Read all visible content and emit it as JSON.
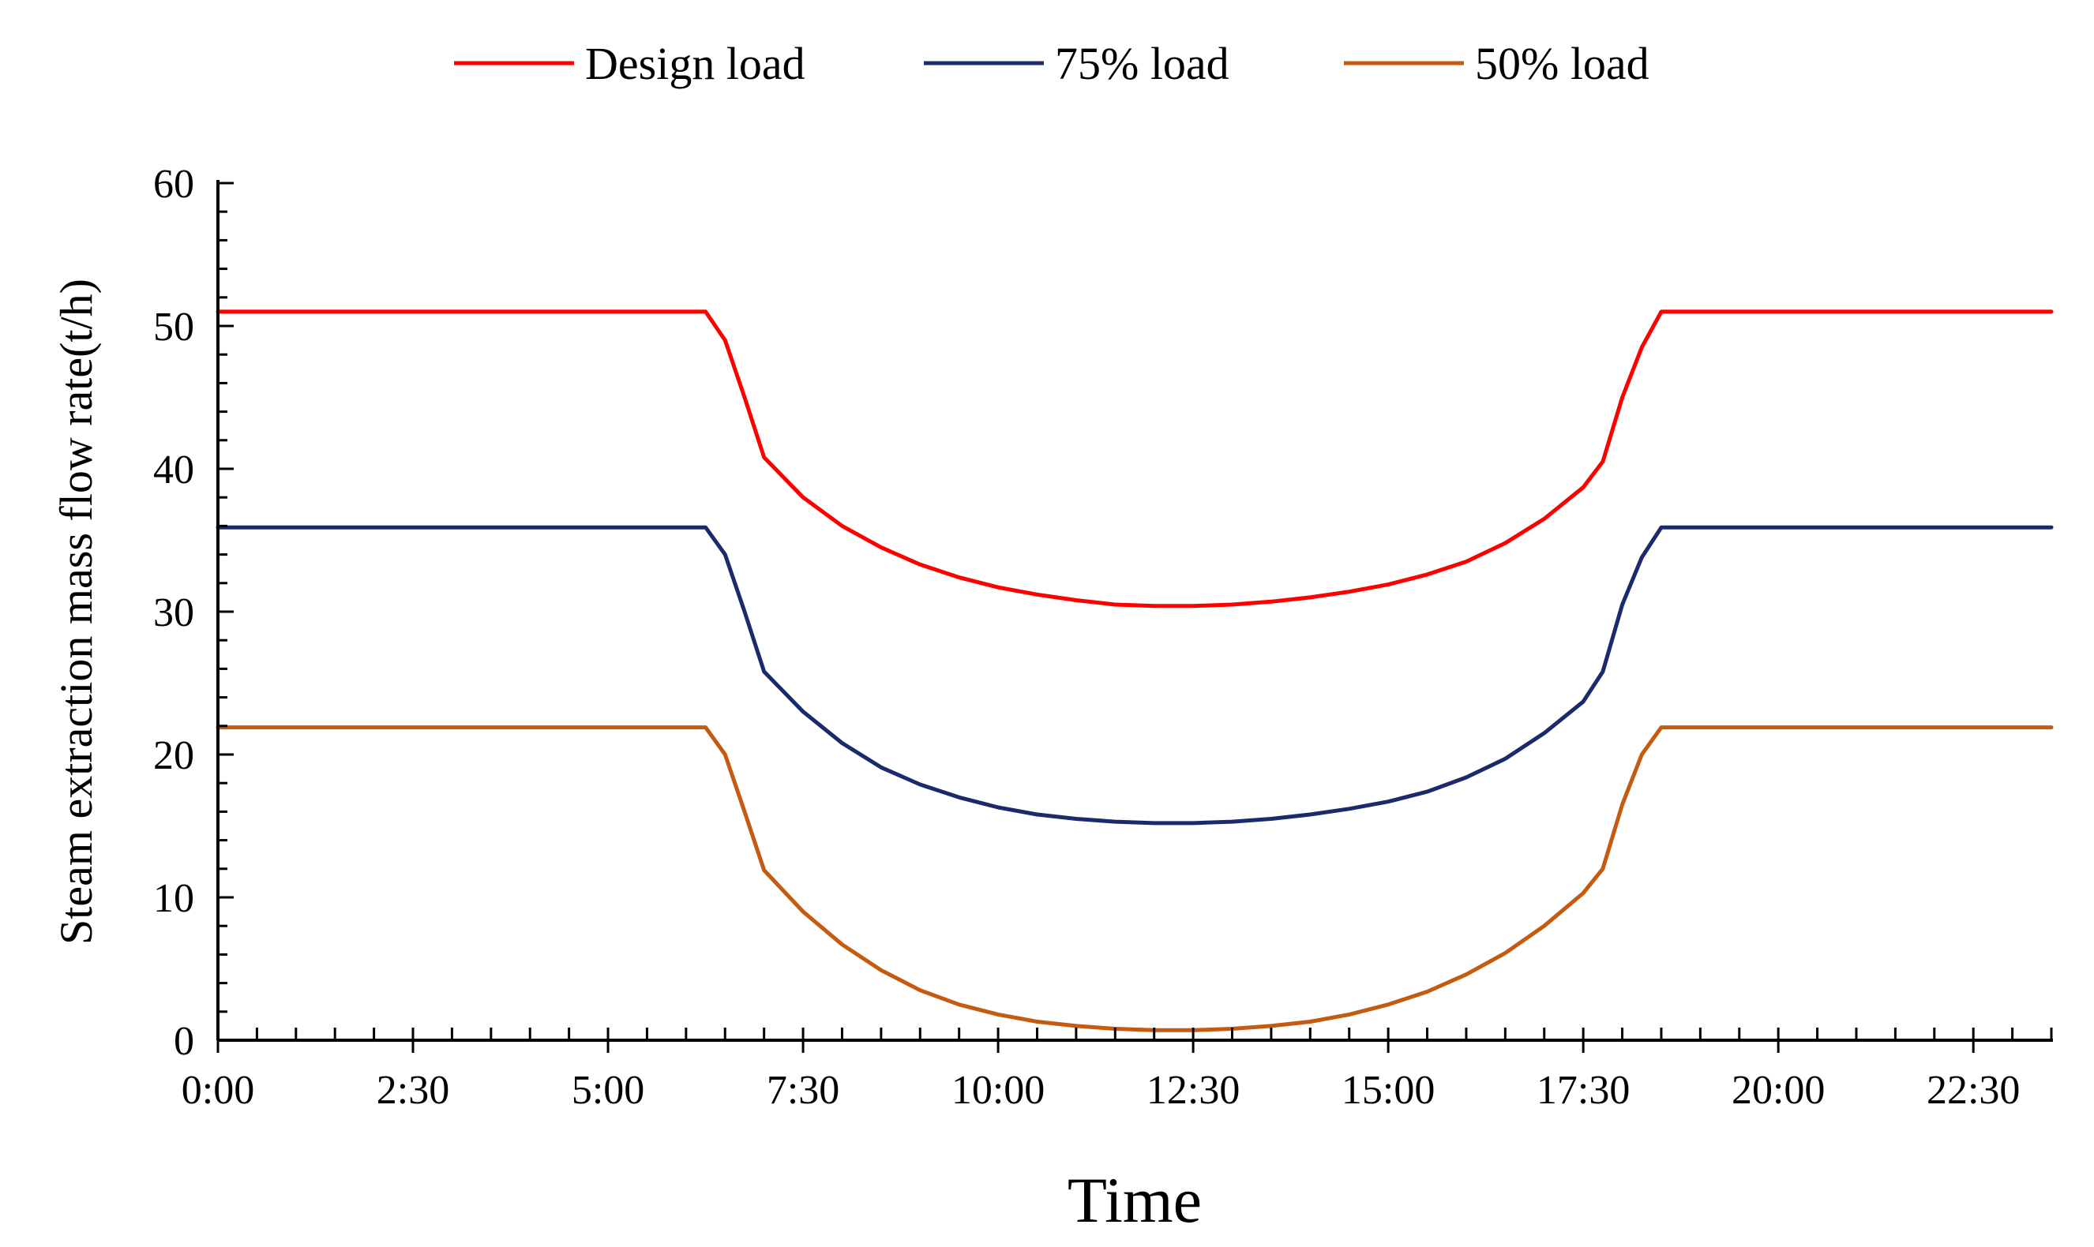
{
  "chart_data": {
    "type": "line",
    "title": "",
    "xlabel": "Time",
    "ylabel": "Steam extraction mass flow rate(t/h)",
    "ylim": [
      0,
      60
    ],
    "y_ticks": [
      0,
      10,
      20,
      30,
      40,
      50,
      60
    ],
    "x_unit": "hours",
    "xlim": [
      0,
      23.5
    ],
    "x_ticks": [
      {
        "value": 0,
        "label": "0:00"
      },
      {
        "value": 2.5,
        "label": "2:30"
      },
      {
        "value": 5,
        "label": "5:00"
      },
      {
        "value": 7.5,
        "label": "7:30"
      },
      {
        "value": 10,
        "label": "10:00"
      },
      {
        "value": 12.5,
        "label": "12:30"
      },
      {
        "value": 15,
        "label": "15:00"
      },
      {
        "value": 17.5,
        "label": "17:30"
      },
      {
        "value": 20,
        "label": "20:00"
      },
      {
        "value": 22.5,
        "label": "22:30"
      }
    ],
    "grid": false,
    "legend_position": "top",
    "series": [
      {
        "name": "Design load",
        "color": "#ff0000",
        "points": [
          [
            0,
            51.0
          ],
          [
            6.25,
            51.0
          ],
          [
            6.5,
            49.0
          ],
          [
            6.75,
            45.0
          ],
          [
            7.0,
            40.8
          ],
          [
            7.5,
            38.0
          ],
          [
            8.0,
            36.0
          ],
          [
            8.5,
            34.5
          ],
          [
            9.0,
            33.3
          ],
          [
            9.5,
            32.4
          ],
          [
            10.0,
            31.7
          ],
          [
            10.5,
            31.2
          ],
          [
            11.0,
            30.8
          ],
          [
            11.5,
            30.5
          ],
          [
            12.0,
            30.4
          ],
          [
            12.5,
            30.4
          ],
          [
            13.0,
            30.5
          ],
          [
            13.5,
            30.7
          ],
          [
            14.0,
            31.0
          ],
          [
            14.5,
            31.4
          ],
          [
            15.0,
            31.9
          ],
          [
            15.5,
            32.6
          ],
          [
            16.0,
            33.5
          ],
          [
            16.5,
            34.8
          ],
          [
            17.0,
            36.5
          ],
          [
            17.5,
            38.7
          ],
          [
            17.75,
            40.5
          ],
          [
            18.0,
            45.0
          ],
          [
            18.25,
            48.5
          ],
          [
            18.5,
            51.0
          ],
          [
            23.5,
            51.0
          ]
        ]
      },
      {
        "name": "75% load",
        "color": "#1c2a6b",
        "points": [
          [
            0,
            35.9
          ],
          [
            6.25,
            35.9
          ],
          [
            6.5,
            34.0
          ],
          [
            6.75,
            30.0
          ],
          [
            7.0,
            25.8
          ],
          [
            7.5,
            23.0
          ],
          [
            8.0,
            20.8
          ],
          [
            8.5,
            19.1
          ],
          [
            9.0,
            17.9
          ],
          [
            9.5,
            17.0
          ],
          [
            10.0,
            16.3
          ],
          [
            10.5,
            15.8
          ],
          [
            11.0,
            15.5
          ],
          [
            11.5,
            15.3
          ],
          [
            12.0,
            15.2
          ],
          [
            12.5,
            15.2
          ],
          [
            13.0,
            15.3
          ],
          [
            13.5,
            15.5
          ],
          [
            14.0,
            15.8
          ],
          [
            14.5,
            16.2
          ],
          [
            15.0,
            16.7
          ],
          [
            15.5,
            17.4
          ],
          [
            16.0,
            18.4
          ],
          [
            16.5,
            19.7
          ],
          [
            17.0,
            21.5
          ],
          [
            17.5,
            23.7
          ],
          [
            17.75,
            25.8
          ],
          [
            18.0,
            30.5
          ],
          [
            18.25,
            33.8
          ],
          [
            18.5,
            35.9
          ],
          [
            23.5,
            35.9
          ]
        ]
      },
      {
        "name": "50% load",
        "color": "#c55a11",
        "points": [
          [
            0,
            21.9
          ],
          [
            6.25,
            21.9
          ],
          [
            6.5,
            20.0
          ],
          [
            6.75,
            16.0
          ],
          [
            7.0,
            11.9
          ],
          [
            7.5,
            9.0
          ],
          [
            8.0,
            6.7
          ],
          [
            8.5,
            4.9
          ],
          [
            9.0,
            3.5
          ],
          [
            9.5,
            2.5
          ],
          [
            10.0,
            1.8
          ],
          [
            10.5,
            1.3
          ],
          [
            11.0,
            1.0
          ],
          [
            11.5,
            0.8
          ],
          [
            12.0,
            0.7
          ],
          [
            12.5,
            0.7
          ],
          [
            13.0,
            0.8
          ],
          [
            13.5,
            1.0
          ],
          [
            14.0,
            1.3
          ],
          [
            14.5,
            1.8
          ],
          [
            15.0,
            2.5
          ],
          [
            15.5,
            3.4
          ],
          [
            16.0,
            4.6
          ],
          [
            16.5,
            6.1
          ],
          [
            17.0,
            8.0
          ],
          [
            17.5,
            10.3
          ],
          [
            17.75,
            12.0
          ],
          [
            18.0,
            16.5
          ],
          [
            18.25,
            20.0
          ],
          [
            18.5,
            21.9
          ],
          [
            23.5,
            21.9
          ]
        ]
      }
    ]
  }
}
